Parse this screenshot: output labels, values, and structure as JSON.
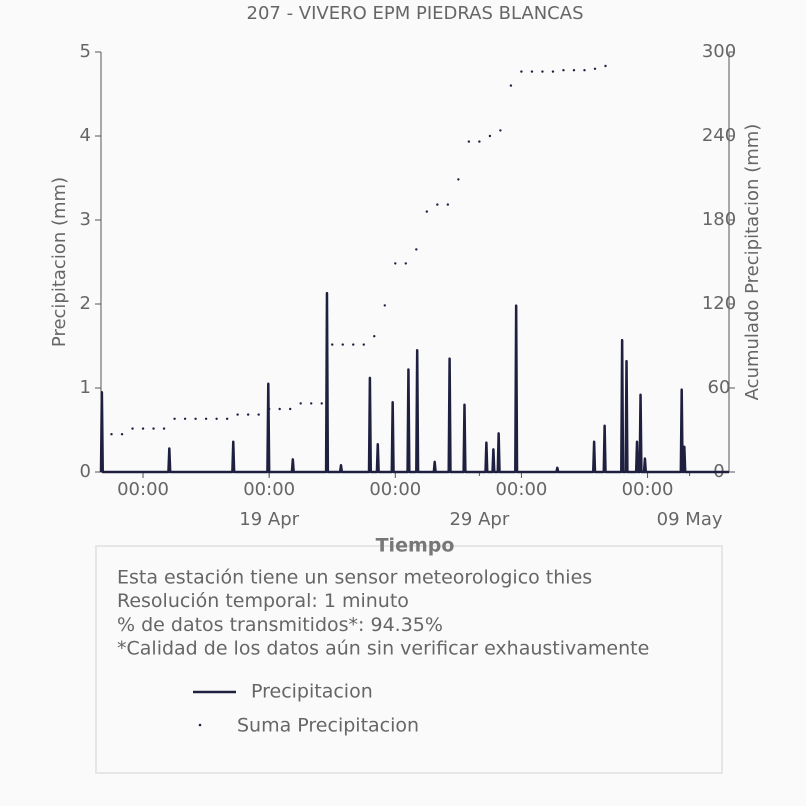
{
  "chart_data": {
    "type": "line",
    "title": "207 - VIVERO EPM PIEDRAS BLANCAS",
    "x_label": "Tiempo",
    "y_label": "Precipitacion (mm)",
    "y2_label": "Acumulado Precipitacion (mm)",
    "xlim": [
      "04-11 00:00",
      "05-10 21:00"
    ],
    "xticks": [
      {
        "value": "04-13 00:00",
        "label": "00:00"
      },
      {
        "value": "04-19 00:00",
        "label": "00:00"
      },
      {
        "value": "04-25 00:00",
        "label": "00:00"
      },
      {
        "value": "05-01 00:00",
        "label": "00:00"
      },
      {
        "value": "05-07 00:00",
        "label": "00:00"
      }
    ],
    "xticks_minor": [
      {
        "value": "04-19 00:00",
        "label": "19 Apr"
      },
      {
        "value": "04-29 00:00",
        "label": "29 Apr"
      },
      {
        "value": "05-09 00:00",
        "label": "09 May"
      }
    ],
    "ylim": [
      0,
      5
    ],
    "yticks": [
      0,
      1,
      2,
      3,
      4,
      5
    ],
    "y2lim": [
      0,
      300
    ],
    "y2ticks": [
      0,
      60,
      120,
      180,
      240,
      300
    ],
    "series": [
      {
        "name": "Precipitacion",
        "color": "#1f2040",
        "style": "line",
        "x": [
          "04-11 00:00",
          "04-11 01:00",
          "04-11 02:00",
          "04-14 05:00",
          "04-14 06:00",
          "04-14 07:00",
          "04-17 06:00",
          "04-17 07:00",
          "04-17 08:00",
          "04-18 22:00",
          "04-18 23:00",
          "04-19 00:00",
          "04-20 02:00",
          "04-20 03:00",
          "04-20 04:00",
          "04-21 17:00",
          "04-21 18:00",
          "04-21 19:00",
          "04-22 09:00",
          "04-22 10:00",
          "04-22 11:00",
          "04-23 18:00",
          "04-23 19:00",
          "04-23 20:00",
          "04-24 03:00",
          "04-24 04:00",
          "04-24 05:00",
          "04-24 20:00",
          "04-24 21:00",
          "04-24 22:00",
          "04-25 14:00",
          "04-25 15:00",
          "04-25 16:00",
          "04-26 00:00",
          "04-26 01:00",
          "04-26 02:00",
          "04-26 20:00",
          "04-26 21:00",
          "04-26 22:00",
          "04-27 13:00",
          "04-27 14:00",
          "04-27 15:00",
          "04-28 06:00",
          "04-28 07:00",
          "04-28 08:00",
          "04-29 07:00",
          "04-29 08:00",
          "04-29 09:00",
          "04-29 15:00",
          "04-29 16:00",
          "04-29 17:00",
          "04-29 21:00",
          "04-29 22:00",
          "04-29 23:00",
          "04-30 17:00",
          "04-30 18:00",
          "04-30 19:00",
          "05-02 16:00",
          "05-02 17:00",
          "05-02 18:00",
          "05-04 10:00",
          "05-04 11:00",
          "05-04 12:00",
          "05-04 22:00",
          "05-04 23:00",
          "05-05 00:00",
          "05-05 18:00",
          "05-05 19:00",
          "05-05 20:00",
          "05-05 23:00",
          "05-06 00:00",
          "05-06 01:00",
          "05-06 11:00",
          "05-06 12:00",
          "05-06 13:00",
          "05-06 15:00",
          "05-06 16:00",
          "05-06 17:00",
          "05-06 20:00",
          "05-06 21:00",
          "05-06 22:00",
          "05-08 14:00",
          "05-08 15:00",
          "05-08 16:00",
          "05-08 17:00",
          "05-08 18:00",
          "05-08 19:00",
          "05-10 21:00"
        ],
        "values": [
          0,
          0.95,
          0,
          0,
          0.28,
          0,
          0,
          0.36,
          0,
          0,
          1.05,
          0,
          0,
          0.15,
          0,
          0,
          2.13,
          0,
          0,
          0.08,
          0,
          0,
          1.12,
          0,
          0,
          0.33,
          0,
          0,
          0.83,
          0,
          0,
          1.22,
          0,
          0,
          1.45,
          0,
          0,
          0.12,
          0,
          0,
          1.35,
          0,
          0,
          0.8,
          0,
          0,
          0.35,
          0,
          0,
          0.27,
          0,
          0,
          0.46,
          0,
          0,
          1.98,
          0,
          0,
          0.05,
          0,
          0,
          0.36,
          0,
          0,
          0.55,
          0,
          0,
          1.57,
          0,
          0,
          1.32,
          0,
          0,
          0.36,
          0,
          0,
          0.92,
          0,
          0,
          0.16,
          0,
          0,
          0.98,
          0,
          0,
          0.3,
          0,
          0
        ]
      },
      {
        "name": "Suma Precipitacion",
        "color": "#1f2040",
        "style": "dots",
        "axis": "y2",
        "x": [
          "04-11 12:00",
          "04-12 00:00",
          "04-12 12:00",
          "04-13 00:00",
          "04-13 12:00",
          "04-14 00:00",
          "04-14 12:00",
          "04-15 00:00",
          "04-15 12:00",
          "04-16 00:00",
          "04-16 12:00",
          "04-17 00:00",
          "04-17 12:00",
          "04-18 00:00",
          "04-18 12:00",
          "04-19 00:00",
          "04-19 12:00",
          "04-20 00:00",
          "04-20 12:00",
          "04-21 00:00",
          "04-21 12:00",
          "04-22 00:00",
          "04-22 12:00",
          "04-23 00:00",
          "04-23 12:00",
          "04-24 00:00",
          "04-24 12:00",
          "04-25 00:00",
          "04-25 12:00",
          "04-26 00:00",
          "04-26 12:00",
          "04-27 00:00",
          "04-27 12:00",
          "04-28 00:00",
          "04-28 12:00",
          "04-29 00:00",
          "04-29 12:00",
          "04-30 00:00",
          "04-30 12:00",
          "05-01 00:00",
          "05-01 12:00",
          "05-02 00:00",
          "05-02 12:00",
          "05-03 00:00",
          "05-03 12:00",
          "05-04 00:00",
          "05-04 12:00",
          "05-05 00:00"
        ],
        "values": [
          27,
          27,
          31,
          31,
          31,
          31,
          38,
          38,
          38,
          38,
          38,
          38,
          41,
          41,
          41,
          45,
          45,
          45,
          49,
          49,
          49,
          91,
          91,
          91,
          91,
          97,
          119,
          149,
          149,
          159,
          186,
          191,
          191,
          209,
          236,
          236,
          240,
          244,
          276,
          286,
          286,
          286,
          286,
          287,
          287,
          287,
          288,
          290
        ]
      }
    ],
    "notes": [
      "Esta estación tiene un sensor meteorologico thies",
      "Resolución temporal: 1 minuto",
      "% de datos transmitidos*: 94.35%",
      "*Calidad de los datos aún sin verificar exhaustivamente"
    ]
  }
}
